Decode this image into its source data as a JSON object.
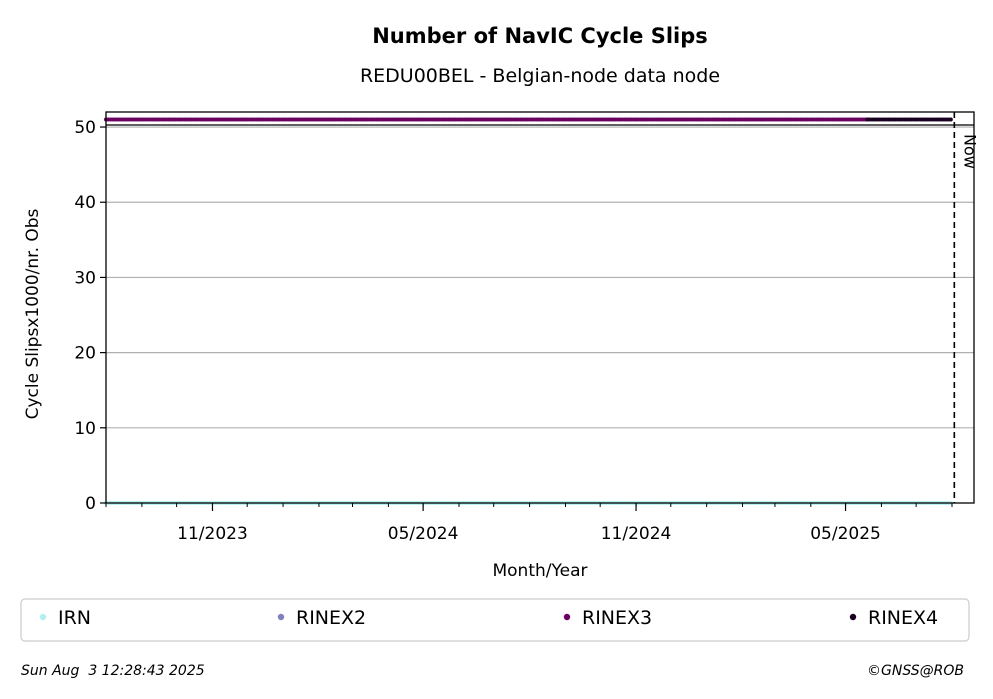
{
  "chart_data": {
    "type": "scatter",
    "title": "Number of NavIC Cycle Slips",
    "subtitle": "REDU00BEL - Belgian-node data node",
    "xlabel": "Month/Year",
    "ylabel": "Cycle Slipsx1000/nr. Obs",
    "x_range": [
      "2023-08-01",
      "2025-08-20"
    ],
    "ylim": [
      0,
      52
    ],
    "y_ticks": [
      0,
      10,
      20,
      30,
      40,
      50
    ],
    "x_ticks": [
      {
        "date": "2023-11-01",
        "label": "11/2023"
      },
      {
        "date": "2024-05-01",
        "label": "05/2024"
      },
      {
        "date": "2024-11-01",
        "label": "11/2024"
      },
      {
        "date": "2025-05-01",
        "label": "05/2025"
      }
    ],
    "grid": true,
    "now_marker": {
      "date": "2025-08-03",
      "label": "Now"
    },
    "series": [
      {
        "name": "IRN",
        "color": "#b2f0f0",
        "x_start": "2023-08-01",
        "x_end": "2025-08-01",
        "y": 0
      },
      {
        "name": "RINEX2",
        "color": "#8080c0",
        "x_start": null,
        "x_end": null,
        "y": null
      },
      {
        "name": "RINEX3",
        "color": "#6a0060",
        "x_start": "2023-08-01",
        "x_end": "2025-05-20",
        "y": 51
      },
      {
        "name": "RINEX4",
        "color": "#1a0020",
        "x_start": "2025-05-20",
        "x_end": "2025-08-01",
        "y": 51
      }
    ],
    "legend_placement": "bottom"
  },
  "footer": {
    "timestamp": "Sun Aug  3 12:28:43 2025",
    "credit": "©GNSS@ROB"
  }
}
